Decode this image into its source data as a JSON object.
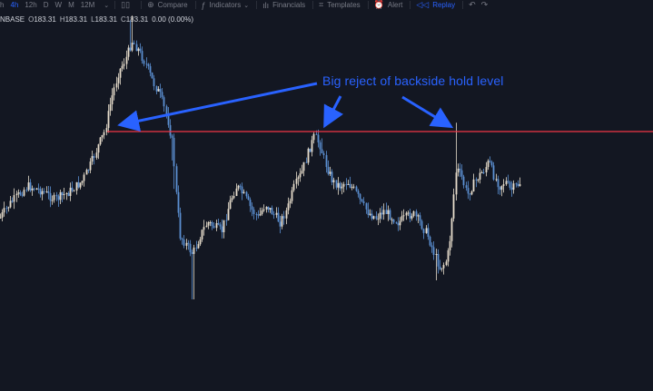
{
  "toolbar": {
    "timeframes": [
      "h",
      "4h",
      "12h",
      "D",
      "W",
      "M",
      "12M"
    ],
    "active_timeframe": "4h",
    "compare_label": "Compare",
    "indicators_label": "Indicators",
    "financials_label": "Financials",
    "templates_label": "Templates",
    "alert_label": "Alert",
    "replay_label": "Replay"
  },
  "legend": {
    "symbol": "NBASE",
    "open_label": "O",
    "open": "183.31",
    "high_label": "H",
    "high": "183.31",
    "low_label": "L",
    "low": "183.31",
    "close_label": "C",
    "close": "183.31",
    "change": "0.00 (0.00%)"
  },
  "annotation": {
    "text": "Big reject of backside hold level"
  },
  "colors": {
    "background": "#131722",
    "level_line": "#f23645",
    "annotation": "#2962ff",
    "candle_up": "#e6dccb",
    "candle_down": "#5b8fd1"
  },
  "chart_data": {
    "type": "candlestick",
    "hold_level": 145,
    "notable_points": [
      {
        "label": "reject 1",
        "index": 12
      },
      {
        "label": "reject 2",
        "index": 52
      },
      {
        "label": "reject 3",
        "index": 75
      }
    ]
  }
}
